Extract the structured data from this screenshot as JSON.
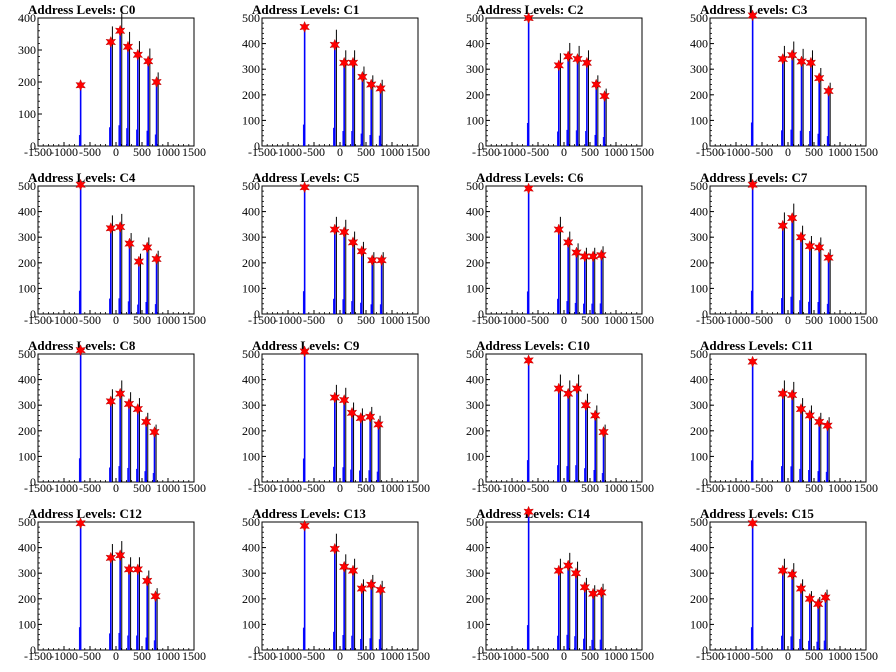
{
  "figure": {
    "x_ticks": [
      "-1500",
      "-1000",
      "-500",
      "0",
      "500",
      "1000",
      "1500"
    ],
    "colors": {
      "histogram_main": "#0000ff",
      "histogram_secondary": "#000000",
      "peak_marker": "#ff0000",
      "axes": "#000000"
    },
    "marker_icon": "red-star-marker"
  },
  "chart_data": [
    {
      "type": "bar",
      "title": "Address Levels: C0",
      "xlim": [
        -1500,
        1500
      ],
      "ylim": [
        0,
        400
      ],
      "yticks": [
        0,
        100,
        200,
        300,
        400
      ],
      "series": [
        {
          "name": "",
          "x": [
            -680,
            -100,
            80,
            230,
            420,
            620,
            780
          ],
          "values": [
            190,
            325,
            360,
            310,
            285,
            265,
            200
          ]
        }
      ]
    },
    {
      "type": "bar",
      "title": "Address Levels: C1",
      "xlim": [
        -1500,
        1500
      ],
      "ylim": [
        0,
        500
      ],
      "yticks": [
        0,
        100,
        200,
        300,
        400,
        500
      ],
      "series": [
        {
          "name": "",
          "x": [
            -680,
            -100,
            80,
            250,
            430,
            600,
            780
          ],
          "values": [
            465,
            395,
            325,
            325,
            270,
            240,
            225
          ]
        }
      ]
    },
    {
      "type": "bar",
      "title": "Address Levels: C2",
      "xlim": [
        -1500,
        1500
      ],
      "ylim": [
        0,
        500
      ],
      "yticks": [
        0,
        100,
        200,
        300,
        400,
        500
      ],
      "series": [
        {
          "name": "",
          "x": [
            -680,
            -100,
            80,
            260,
            440,
            620,
            780
          ],
          "values": [
            500,
            315,
            350,
            340,
            325,
            240,
            195
          ]
        }
      ]
    },
    {
      "type": "bar",
      "title": "Address Levels: C3",
      "xlim": [
        -1500,
        1500
      ],
      "ylim": [
        0,
        500
      ],
      "yticks": [
        0,
        100,
        200,
        300,
        400,
        500
      ],
      "series": [
        {
          "name": "",
          "x": [
            -680,
            -100,
            80,
            260,
            440,
            600,
            780
          ],
          "values": [
            510,
            340,
            355,
            330,
            325,
            265,
            215
          ]
        }
      ]
    },
    {
      "type": "bar",
      "title": "Address Levels: C4",
      "xlim": [
        -1500,
        1500
      ],
      "ylim": [
        0,
        500
      ],
      "yticks": [
        0,
        100,
        200,
        300,
        400,
        500
      ],
      "series": [
        {
          "name": "",
          "x": [
            -680,
            -100,
            80,
            260,
            440,
            600,
            780
          ],
          "values": [
            505,
            335,
            340,
            275,
            205,
            260,
            215
          ]
        }
      ]
    },
    {
      "type": "bar",
      "title": "Address Levels: C5",
      "xlim": [
        -1500,
        1500
      ],
      "ylim": [
        0,
        500
      ],
      "yticks": [
        0,
        100,
        200,
        300,
        400,
        500
      ],
      "series": [
        {
          "name": "",
          "x": [
            -680,
            -100,
            80,
            250,
            420,
            620,
            800
          ],
          "values": [
            495,
            330,
            320,
            280,
            245,
            210,
            210
          ]
        }
      ]
    },
    {
      "type": "bar",
      "title": "Address Levels: C6",
      "xlim": [
        -1500,
        1500
      ],
      "ylim": [
        0,
        500
      ],
      "yticks": [
        0,
        100,
        200,
        300,
        400,
        500
      ],
      "series": [
        {
          "name": "",
          "x": [
            -680,
            -100,
            80,
            240,
            400,
            560,
            720
          ],
          "values": [
            490,
            330,
            280,
            240,
            225,
            225,
            230
          ]
        }
      ]
    },
    {
      "type": "bar",
      "title": "Address Levels: C7",
      "xlim": [
        -1500,
        1500
      ],
      "ylim": [
        0,
        500
      ],
      "yticks": [
        0,
        100,
        200,
        300,
        400,
        500
      ],
      "series": [
        {
          "name": "",
          "x": [
            -680,
            -100,
            80,
            250,
            420,
            600,
            780
          ],
          "values": [
            505,
            345,
            375,
            300,
            265,
            260,
            220
          ]
        }
      ]
    },
    {
      "type": "bar",
      "title": "Address Levels: C8",
      "xlim": [
        -1500,
        1500
      ],
      "ylim": [
        0,
        500
      ],
      "yticks": [
        0,
        100,
        200,
        300,
        400,
        500
      ],
      "series": [
        {
          "name": "",
          "x": [
            -680,
            -100,
            80,
            250,
            420,
            580,
            740
          ],
          "values": [
            515,
            315,
            345,
            305,
            285,
            235,
            195
          ]
        }
      ]
    },
    {
      "type": "bar",
      "title": "Address Levels: C9",
      "xlim": [
        -1500,
        1500
      ],
      "ylim": [
        0,
        500
      ],
      "yticks": [
        0,
        100,
        200,
        300,
        400,
        500
      ],
      "series": [
        {
          "name": "",
          "x": [
            -680,
            -100,
            80,
            230,
            400,
            580,
            740
          ],
          "values": [
            510,
            330,
            320,
            270,
            250,
            255,
            225
          ]
        }
      ]
    },
    {
      "type": "bar",
      "title": "Address Levels: C10",
      "xlim": [
        -1500,
        1500
      ],
      "ylim": [
        0,
        500
      ],
      "yticks": [
        0,
        100,
        200,
        300,
        400,
        500
      ],
      "series": [
        {
          "name": "",
          "x": [
            -680,
            -100,
            80,
            250,
            420,
            600,
            760
          ],
          "values": [
            475,
            365,
            345,
            365,
            300,
            260,
            195
          ]
        }
      ]
    },
    {
      "type": "bar",
      "title": "Address Levels: C11",
      "xlim": [
        -1500,
        1500
      ],
      "ylim": [
        0,
        500
      ],
      "yticks": [
        0,
        100,
        200,
        300,
        400,
        500
      ],
      "series": [
        {
          "name": "",
          "x": [
            -680,
            -100,
            80,
            250,
            420,
            600,
            760
          ],
          "values": [
            470,
            345,
            340,
            285,
            260,
            235,
            220
          ]
        }
      ]
    },
    {
      "type": "bar",
      "title": "Address Levels: C12",
      "xlim": [
        -1500,
        1500
      ],
      "ylim": [
        0,
        500
      ],
      "yticks": [
        0,
        100,
        200,
        300,
        400,
        500
      ],
      "series": [
        {
          "name": "",
          "x": [
            -680,
            -100,
            80,
            250,
            420,
            600,
            760
          ],
          "values": [
            495,
            360,
            370,
            315,
            315,
            270,
            210
          ]
        }
      ]
    },
    {
      "type": "bar",
      "title": "Address Levels: C13",
      "xlim": [
        -1500,
        1500
      ],
      "ylim": [
        0,
        500
      ],
      "yticks": [
        0,
        100,
        200,
        300,
        400,
        500
      ],
      "series": [
        {
          "name": "",
          "x": [
            -680,
            -100,
            80,
            250,
            420,
            600,
            780
          ],
          "values": [
            485,
            395,
            325,
            310,
            240,
            255,
            235
          ]
        }
      ]
    },
    {
      "type": "bar",
      "title": "Address Levels: C14",
      "xlim": [
        -1500,
        1500
      ],
      "ylim": [
        0,
        500
      ],
      "yticks": [
        0,
        100,
        200,
        300,
        400,
        500
      ],
      "series": [
        {
          "name": "",
          "x": [
            -680,
            -100,
            80,
            230,
            400,
            560,
            720
          ],
          "values": [
            540,
            310,
            330,
            300,
            245,
            220,
            225
          ]
        }
      ]
    },
    {
      "type": "bar",
      "title": "Address Levels: C15",
      "xlim": [
        -1500,
        1500
      ],
      "ylim": [
        0,
        500
      ],
      "yticks": [
        0,
        100,
        200,
        300,
        400,
        500
      ],
      "series": [
        {
          "name": "",
          "x": [
            -680,
            -100,
            80,
            250,
            420,
            580,
            720
          ],
          "values": [
            495,
            310,
            295,
            240,
            200,
            180,
            205
          ]
        }
      ]
    }
  ]
}
